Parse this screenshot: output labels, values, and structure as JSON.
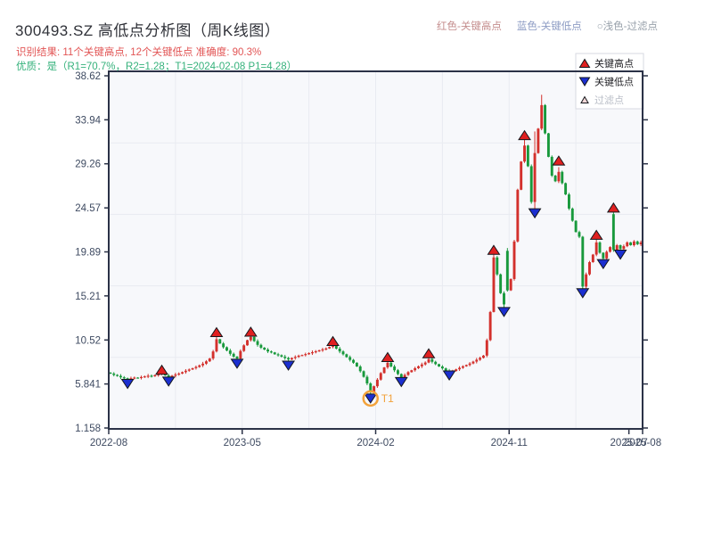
{
  "page": {
    "title": "300493.SZ 高低点分析图（周K线图）",
    "result_line": "识别结果: 11个关键高点, 12个关键低点  准确度: 90.3%",
    "quality_line": "优质：是（R1=70.7%，R2=1.28；T1=2024-02-08 P1=4.28）"
  },
  "top_legend": {
    "items": [
      {
        "id": "key-high",
        "label": "红色-关键高点",
        "color": "#c48d8d"
      },
      {
        "id": "key-low",
        "label": "蓝色-关键低点",
        "color": "#8d9cc4"
      },
      {
        "id": "filtered",
        "label": "○浅色-过滤点",
        "color": "#98a1ab"
      }
    ]
  },
  "chart_data": {
    "type": "candlestick",
    "symbol": "300493.SZ",
    "timeframe": "weekly",
    "title": "300493.SZ 高低点分析图（周K线图）",
    "y_ticks": [
      38.62,
      33.94,
      29.26,
      24.57,
      19.89,
      15.21,
      10.52,
      5.841,
      1.158
    ],
    "x_ticks": [
      {
        "label": "2022-08",
        "week": 0
      },
      {
        "label": "2023-05",
        "week": 39
      },
      {
        "label": "2024-02",
        "week": 78
      },
      {
        "label": "2024-11",
        "week": 117
      },
      {
        "label": "2025-07",
        "week": 152
      },
      {
        "label": "2025-08",
        "week": 156
      }
    ],
    "weeks_total": 156,
    "first_open": 7.05,
    "closes": [
      6.95,
      6.8,
      6.7,
      6.55,
      6.45,
      6.35,
      6.45,
      6.52,
      6.47,
      6.58,
      6.65,
      6.72,
      6.66,
      6.78,
      6.88,
      6.98,
      6.75,
      6.58,
      6.72,
      6.85,
      6.95,
      7.1,
      7.25,
      7.38,
      7.52,
      7.65,
      7.82,
      8.0,
      8.25,
      8.55,
      9.3,
      10.6,
      10.15,
      9.75,
      9.4,
      9.05,
      8.75,
      8.55,
      9.35,
      9.95,
      10.5,
      10.85,
      10.4,
      10.0,
      9.7,
      9.5,
      9.3,
      9.2,
      9.0,
      8.9,
      8.75,
      8.6,
      8.45,
      8.6,
      8.72,
      8.85,
      8.92,
      9.02,
      9.12,
      9.22,
      9.32,
      9.42,
      9.52,
      9.62,
      9.78,
      9.92,
      9.6,
      9.3,
      9.0,
      8.7,
      8.4,
      8.1,
      7.7,
      7.2,
      6.6,
      5.9,
      4.95,
      5.6,
      6.3,
      7.0,
      7.6,
      8.1,
      7.7,
      7.3,
      6.9,
      6.55,
      6.8,
      7.1,
      7.3,
      7.52,
      7.72,
      7.92,
      8.12,
      8.48,
      8.2,
      7.95,
      7.7,
      7.5,
      7.25,
      7.05,
      7.22,
      7.4,
      7.56,
      7.72,
      7.86,
      8.02,
      8.22,
      8.42,
      8.62,
      8.86,
      10.5,
      13.5,
      19.3,
      17.5,
      15.5,
      14.3,
      15.8,
      17.0,
      21.0,
      26.5,
      29.5,
      31.2,
      29.0,
      25.2,
      30.4,
      33.0,
      35.5,
      32.5,
      30.0,
      28.0,
      27.4,
      28.4,
      27.2,
      26.0,
      24.5,
      23.2,
      22.0,
      21.5,
      16.2,
      17.5,
      18.8,
      19.6,
      20.9,
      19.8,
      19.2,
      19.9,
      20.4,
      20.1,
      20.6,
      20.2,
      20.5,
      20.9,
      20.6,
      21.0,
      20.7,
      20.9
    ],
    "overrides": {
      "5": {
        "l": 6.2
      },
      "17": {
        "l": 6.45
      },
      "31": {
        "h": 10.95
      },
      "37": {
        "l": 8.35
      },
      "41": {
        "h": 11.0
      },
      "52": {
        "l": 8.15
      },
      "65": {
        "h": 10.0
      },
      "76": {
        "l": 4.6
      },
      "81": {
        "h": 8.3
      },
      "85": {
        "l": 6.4
      },
      "93": {
        "h": 8.7
      },
      "99": {
        "l": 7.0
      },
      "112": {
        "h": 19.6
      },
      "115": {
        "l": 13.9
      },
      "116": {
        "o": 20.0,
        "h": 20.3
      },
      "121": {
        "h": 31.8
      },
      "124": {
        "l": 24.4,
        "h": 32.7
      },
      "126": {
        "h": 36.6
      },
      "131": {
        "h": 28.9
      },
      "138": {
        "l": 15.9
      },
      "142": {
        "h": 21.2
      },
      "144": {
        "l": 19.05
      },
      "147": {
        "o": 23.9,
        "h": 24.1,
        "l": 19.9
      },
      "149": {
        "l": 19.95
      }
    },
    "key_highs": [
      [
        15,
        7.35
      ],
      [
        31,
        11.35
      ],
      [
        41,
        11.4
      ],
      [
        65,
        10.4
      ],
      [
        81,
        8.7
      ],
      [
        93,
        9.1
      ],
      [
        112,
        20.1
      ],
      [
        121,
        32.3
      ],
      [
        131,
        29.6
      ],
      [
        142,
        21.7
      ],
      [
        147,
        24.6
      ]
    ],
    "key_lows": [
      [
        5,
        5.85
      ],
      [
        17,
        6.1
      ],
      [
        37,
        8.0
      ],
      [
        52,
        7.8
      ],
      [
        76,
        4.3
      ],
      [
        85,
        6.05
      ],
      [
        99,
        6.75
      ],
      [
        115,
        13.5
      ],
      [
        124,
        24.0
      ],
      [
        138,
        15.5
      ],
      [
        144,
        18.6
      ],
      [
        149,
        19.6
      ]
    ],
    "t1": {
      "week": 76,
      "value": 4.3,
      "label": "T1"
    },
    "legend": {
      "items": [
        {
          "label": "关键高点",
          "marker": "up",
          "color": "#e02020",
          "text_color": "#1d1d22"
        },
        {
          "label": "关键低点",
          "marker": "down",
          "color": "#1b2fd0",
          "text_color": "#1d1d22"
        },
        {
          "label": "过滤点",
          "marker": "up-light",
          "color": "#f6d8d8",
          "text_color": "#b9bec7"
        }
      ]
    },
    "colors": {
      "up": "#d3302c",
      "down": "#18993c",
      "plot_bg": "#f7f8fb",
      "grid": "#e9ebf1",
      "spine": "#2b3247",
      "tick_label": "#3e4a61",
      "marker_high": "#e02020",
      "marker_low": "#1b2fd0",
      "marker_edge": "#15171c",
      "t1": "#f2a23b",
      "legend_border": "#d7dae1",
      "legend_bg": "#ffffff"
    }
  }
}
